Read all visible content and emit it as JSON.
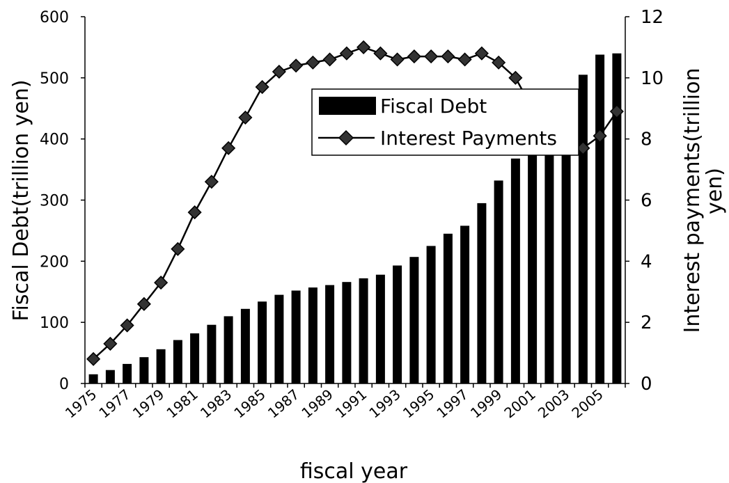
{
  "chart_data": {
    "type": "bar",
    "xlabel": "fiscal year",
    "ylabel_left": "Fiscal Debt(trillion yen)",
    "ylabel_right": "Interest payments(trillion yen)",
    "ylim_left": [
      0,
      600
    ],
    "yticks_left": [
      0,
      100,
      200,
      300,
      400,
      500,
      600
    ],
    "ylim_right": [
      0,
      12
    ],
    "yticks_right": [
      0,
      2,
      4,
      6,
      8,
      10,
      12
    ],
    "x": [
      1975,
      1976,
      1977,
      1978,
      1979,
      1980,
      1981,
      1982,
      1983,
      1984,
      1985,
      1986,
      1987,
      1988,
      1989,
      1990,
      1991,
      1992,
      1993,
      1994,
      1995,
      1996,
      1997,
      1998,
      1999,
      2000,
      2001,
      2002,
      2003,
      2004,
      2005,
      2006
    ],
    "x_tick_labels": [
      "1975",
      "1977",
      "1979",
      "1981",
      "1983",
      "1985",
      "1987",
      "1989",
      "1991",
      "1993",
      "1995",
      "1997",
      "1999",
      "2001",
      "2003",
      "2005"
    ],
    "legend_position": "upper-center",
    "grid": false,
    "series": [
      {
        "name": "Fiscal Debt",
        "type": "bar",
        "axis": "left",
        "color": "#000000",
        "values": [
          15,
          22,
          32,
          43,
          56,
          71,
          82,
          96,
          110,
          122,
          134,
          145,
          152,
          157,
          161,
          166,
          172,
          178,
          193,
          207,
          225,
          245,
          258,
          295,
          332,
          368,
          392,
          421,
          457,
          505,
          538,
          540
        ]
      },
      {
        "name": "Interest Payments",
        "type": "line",
        "axis": "right",
        "marker": "diamond",
        "color": "#000000",
        "values": [
          0.8,
          1.3,
          1.9,
          2.6,
          3.3,
          4.4,
          5.6,
          6.6,
          7.7,
          8.7,
          9.7,
          10.2,
          10.4,
          10.5,
          10.6,
          10.8,
          11.0,
          10.8,
          10.6,
          10.7,
          10.7,
          10.7,
          10.6,
          10.8,
          10.5,
          10.0,
          9.0,
          8.3,
          7.7,
          7.7,
          8.1,
          8.9
        ]
      }
    ]
  }
}
